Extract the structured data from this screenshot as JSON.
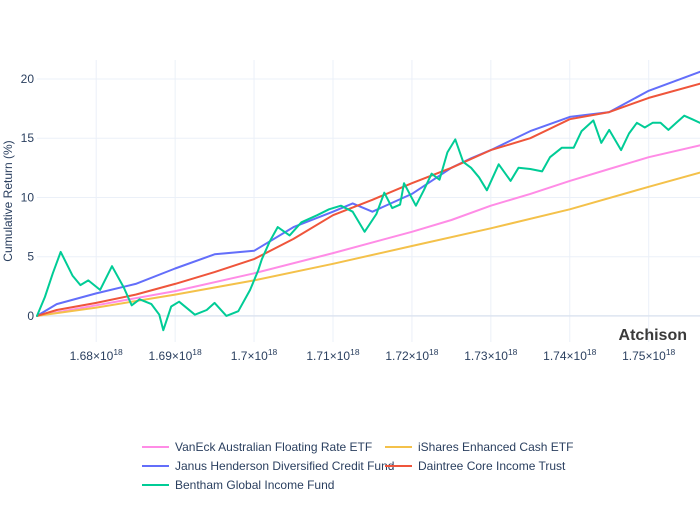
{
  "chart_data": {
    "type": "line",
    "title": "",
    "xlabel": "",
    "ylabel": "Cumulative Return (%)",
    "watermark": "Atchison",
    "xlim": [
      1.6725e+18,
      1.7565e+18
    ],
    "ylim": [
      -2.2,
      21.6
    ],
    "x_ticks": [
      {
        "value": 1.68e+18,
        "mantissa": "1.68",
        "sep": "×10",
        "exp": "18"
      },
      {
        "value": 1.69e+18,
        "mantissa": "1.69",
        "sep": "×10",
        "exp": "18"
      },
      {
        "value": 1.7e+18,
        "mantissa": "1.7",
        "sep": "×10",
        "exp": "18"
      },
      {
        "value": 1.71e+18,
        "mantissa": "1.71",
        "sep": "×10",
        "exp": "18"
      },
      {
        "value": 1.72e+18,
        "mantissa": "1.72",
        "sep": "×10",
        "exp": "18"
      },
      {
        "value": 1.73e+18,
        "mantissa": "1.73",
        "sep": "×10",
        "exp": "18"
      },
      {
        "value": 1.74e+18,
        "mantissa": "1.74",
        "sep": "×10",
        "exp": "18"
      },
      {
        "value": 1.75e+18,
        "mantissa": "1.75",
        "sep": "×10",
        "exp": "18"
      }
    ],
    "y_ticks": [
      {
        "value": 0,
        "label": "0"
      },
      {
        "value": 5,
        "label": "5"
      },
      {
        "value": 10,
        "label": "10"
      },
      {
        "value": 15,
        "label": "15"
      },
      {
        "value": 20,
        "label": "20"
      }
    ],
    "grid": true,
    "legend_position": "bottom",
    "series": [
      {
        "name": "VanEck Australian Floating Rate ETF",
        "color": "#ff8ce6",
        "points": [
          [
            1.6725e+18,
            0
          ],
          [
            1.68e+18,
            0.9
          ],
          [
            1.69e+18,
            2.1
          ],
          [
            1.7e+18,
            3.6
          ],
          [
            1.71e+18,
            5.3
          ],
          [
            1.72e+18,
            7.1
          ],
          [
            1.725e+18,
            8.1
          ],
          [
            1.73e+18,
            9.3
          ],
          [
            1.735e+18,
            10.3
          ],
          [
            1.74e+18,
            11.4
          ],
          [
            1.745e+18,
            12.4
          ],
          [
            1.75e+18,
            13.4
          ],
          [
            1.7565e+18,
            14.4
          ]
        ]
      },
      {
        "name": "iShares Enhanced Cash ETF",
        "color": "#f4c14a",
        "points": [
          [
            1.6725e+18,
            0
          ],
          [
            1.68e+18,
            0.7
          ],
          [
            1.69e+18,
            1.8
          ],
          [
            1.7e+18,
            3.0
          ],
          [
            1.71e+18,
            4.4
          ],
          [
            1.72e+18,
            5.9
          ],
          [
            1.73e+18,
            7.4
          ],
          [
            1.74e+18,
            9.0
          ],
          [
            1.75e+18,
            10.9
          ],
          [
            1.7565e+18,
            12.1
          ]
        ]
      },
      {
        "name": "Janus Henderson Diversified Credit Fund",
        "color": "#636efa",
        "points": [
          [
            1.6725e+18,
            0
          ],
          [
            1.675e+18,
            1.0
          ],
          [
            1.68e+18,
            1.9
          ],
          [
            1.685e+18,
            2.7
          ],
          [
            1.69e+18,
            4.0
          ],
          [
            1.695e+18,
            5.2
          ],
          [
            1.7e+18,
            5.5
          ],
          [
            1.705e+18,
            7.5
          ],
          [
            1.71e+18,
            8.8
          ],
          [
            1.7125e+18,
            9.5
          ],
          [
            1.715e+18,
            8.8
          ],
          [
            1.72e+18,
            10.3
          ],
          [
            1.725e+18,
            12.5
          ],
          [
            1.7275e+18,
            13.3
          ],
          [
            1.73e+18,
            14.0
          ],
          [
            1.735e+18,
            15.6
          ],
          [
            1.74e+18,
            16.8
          ],
          [
            1.745e+18,
            17.2
          ],
          [
            1.75e+18,
            19.0
          ],
          [
            1.7565e+18,
            20.6
          ]
        ]
      },
      {
        "name": "Daintree Core Income Trust",
        "color": "#ef553b",
        "points": [
          [
            1.6725e+18,
            0
          ],
          [
            1.675e+18,
            0.5
          ],
          [
            1.68e+18,
            1.1
          ],
          [
            1.685e+18,
            1.8
          ],
          [
            1.69e+18,
            2.7
          ],
          [
            1.695e+18,
            3.7
          ],
          [
            1.7e+18,
            4.8
          ],
          [
            1.705e+18,
            6.5
          ],
          [
            1.71e+18,
            8.5
          ],
          [
            1.715e+18,
            9.8
          ],
          [
            1.72e+18,
            11.2
          ],
          [
            1.725e+18,
            12.5
          ],
          [
            1.73e+18,
            14.0
          ],
          [
            1.735e+18,
            15.0
          ],
          [
            1.74e+18,
            16.6
          ],
          [
            1.745e+18,
            17.2
          ],
          [
            1.75e+18,
            18.4
          ],
          [
            1.7565e+18,
            19.6
          ]
        ]
      },
      {
        "name": "Bentham Global Income Fund",
        "color": "#00cc96",
        "points": [
          [
            1.6725e+18,
            0
          ],
          [
            1.6735e+18,
            1.6
          ],
          [
            1.6745e+18,
            3.6
          ],
          [
            1.6755e+18,
            5.4
          ],
          [
            1.677e+18,
            3.4
          ],
          [
            1.678e+18,
            2.6
          ],
          [
            1.679e+18,
            3.0
          ],
          [
            1.6805e+18,
            2.2
          ],
          [
            1.682e+18,
            4.2
          ],
          [
            1.6835e+18,
            2.4
          ],
          [
            1.6845e+18,
            0.9
          ],
          [
            1.6855e+18,
            1.4
          ],
          [
            1.687e+18,
            1.0
          ],
          [
            1.688e+18,
            0.1
          ],
          [
            1.6885e+18,
            -1.2
          ],
          [
            1.6895e+18,
            0.8
          ],
          [
            1.6905e+18,
            1.2
          ],
          [
            1.6925e+18,
            0.1
          ],
          [
            1.694e+18,
            0.5
          ],
          [
            1.695e+18,
            1.1
          ],
          [
            1.6965e+18,
            0.0
          ],
          [
            1.698e+18,
            0.4
          ],
          [
            1.6995e+18,
            2.2
          ],
          [
            1.7005e+18,
            3.8
          ],
          [
            1.701e+18,
            4.8
          ],
          [
            1.702e+18,
            6.3
          ],
          [
            1.703e+18,
            7.5
          ],
          [
            1.7045e+18,
            6.8
          ],
          [
            1.706e+18,
            7.9
          ],
          [
            1.708e+18,
            8.5
          ],
          [
            1.7095e+18,
            9.0
          ],
          [
            1.711e+18,
            9.3
          ],
          [
            1.7125e+18,
            8.8
          ],
          [
            1.714e+18,
            7.1
          ],
          [
            1.7155e+18,
            8.6
          ],
          [
            1.7165e+18,
            10.4
          ],
          [
            1.7175e+18,
            9.1
          ],
          [
            1.7185e+18,
            9.4
          ],
          [
            1.719e+18,
            11.2
          ],
          [
            1.7205e+18,
            9.3
          ],
          [
            1.7215e+18,
            10.6
          ],
          [
            1.7225e+18,
            12.0
          ],
          [
            1.7235e+18,
            11.5
          ],
          [
            1.7245e+18,
            13.8
          ],
          [
            1.7255e+18,
            14.9
          ],
          [
            1.7265e+18,
            13.0
          ],
          [
            1.7275e+18,
            12.5
          ],
          [
            1.7285e+18,
            11.7
          ],
          [
            1.7295e+18,
            10.6
          ],
          [
            1.731e+18,
            12.8
          ],
          [
            1.7325e+18,
            11.4
          ],
          [
            1.7335e+18,
            12.5
          ],
          [
            1.735e+18,
            12.4
          ],
          [
            1.7365e+18,
            12.2
          ],
          [
            1.7375e+18,
            13.4
          ],
          [
            1.739e+18,
            14.2
          ],
          [
            1.7405e+18,
            14.2
          ],
          [
            1.7415e+18,
            15.6
          ],
          [
            1.743e+18,
            16.5
          ],
          [
            1.744e+18,
            14.6
          ],
          [
            1.745e+18,
            15.7
          ],
          [
            1.7465e+18,
            14.0
          ],
          [
            1.7475e+18,
            15.4
          ],
          [
            1.7485e+18,
            16.3
          ],
          [
            1.7495e+18,
            15.9
          ],
          [
            1.7505e+18,
            16.3
          ],
          [
            1.7515e+18,
            16.3
          ],
          [
            1.7525e+18,
            15.7
          ],
          [
            1.7535e+18,
            16.3
          ],
          [
            1.7545e+18,
            16.9
          ],
          [
            1.7555e+18,
            16.6
          ],
          [
            1.7565e+18,
            16.3
          ]
        ]
      }
    ]
  }
}
